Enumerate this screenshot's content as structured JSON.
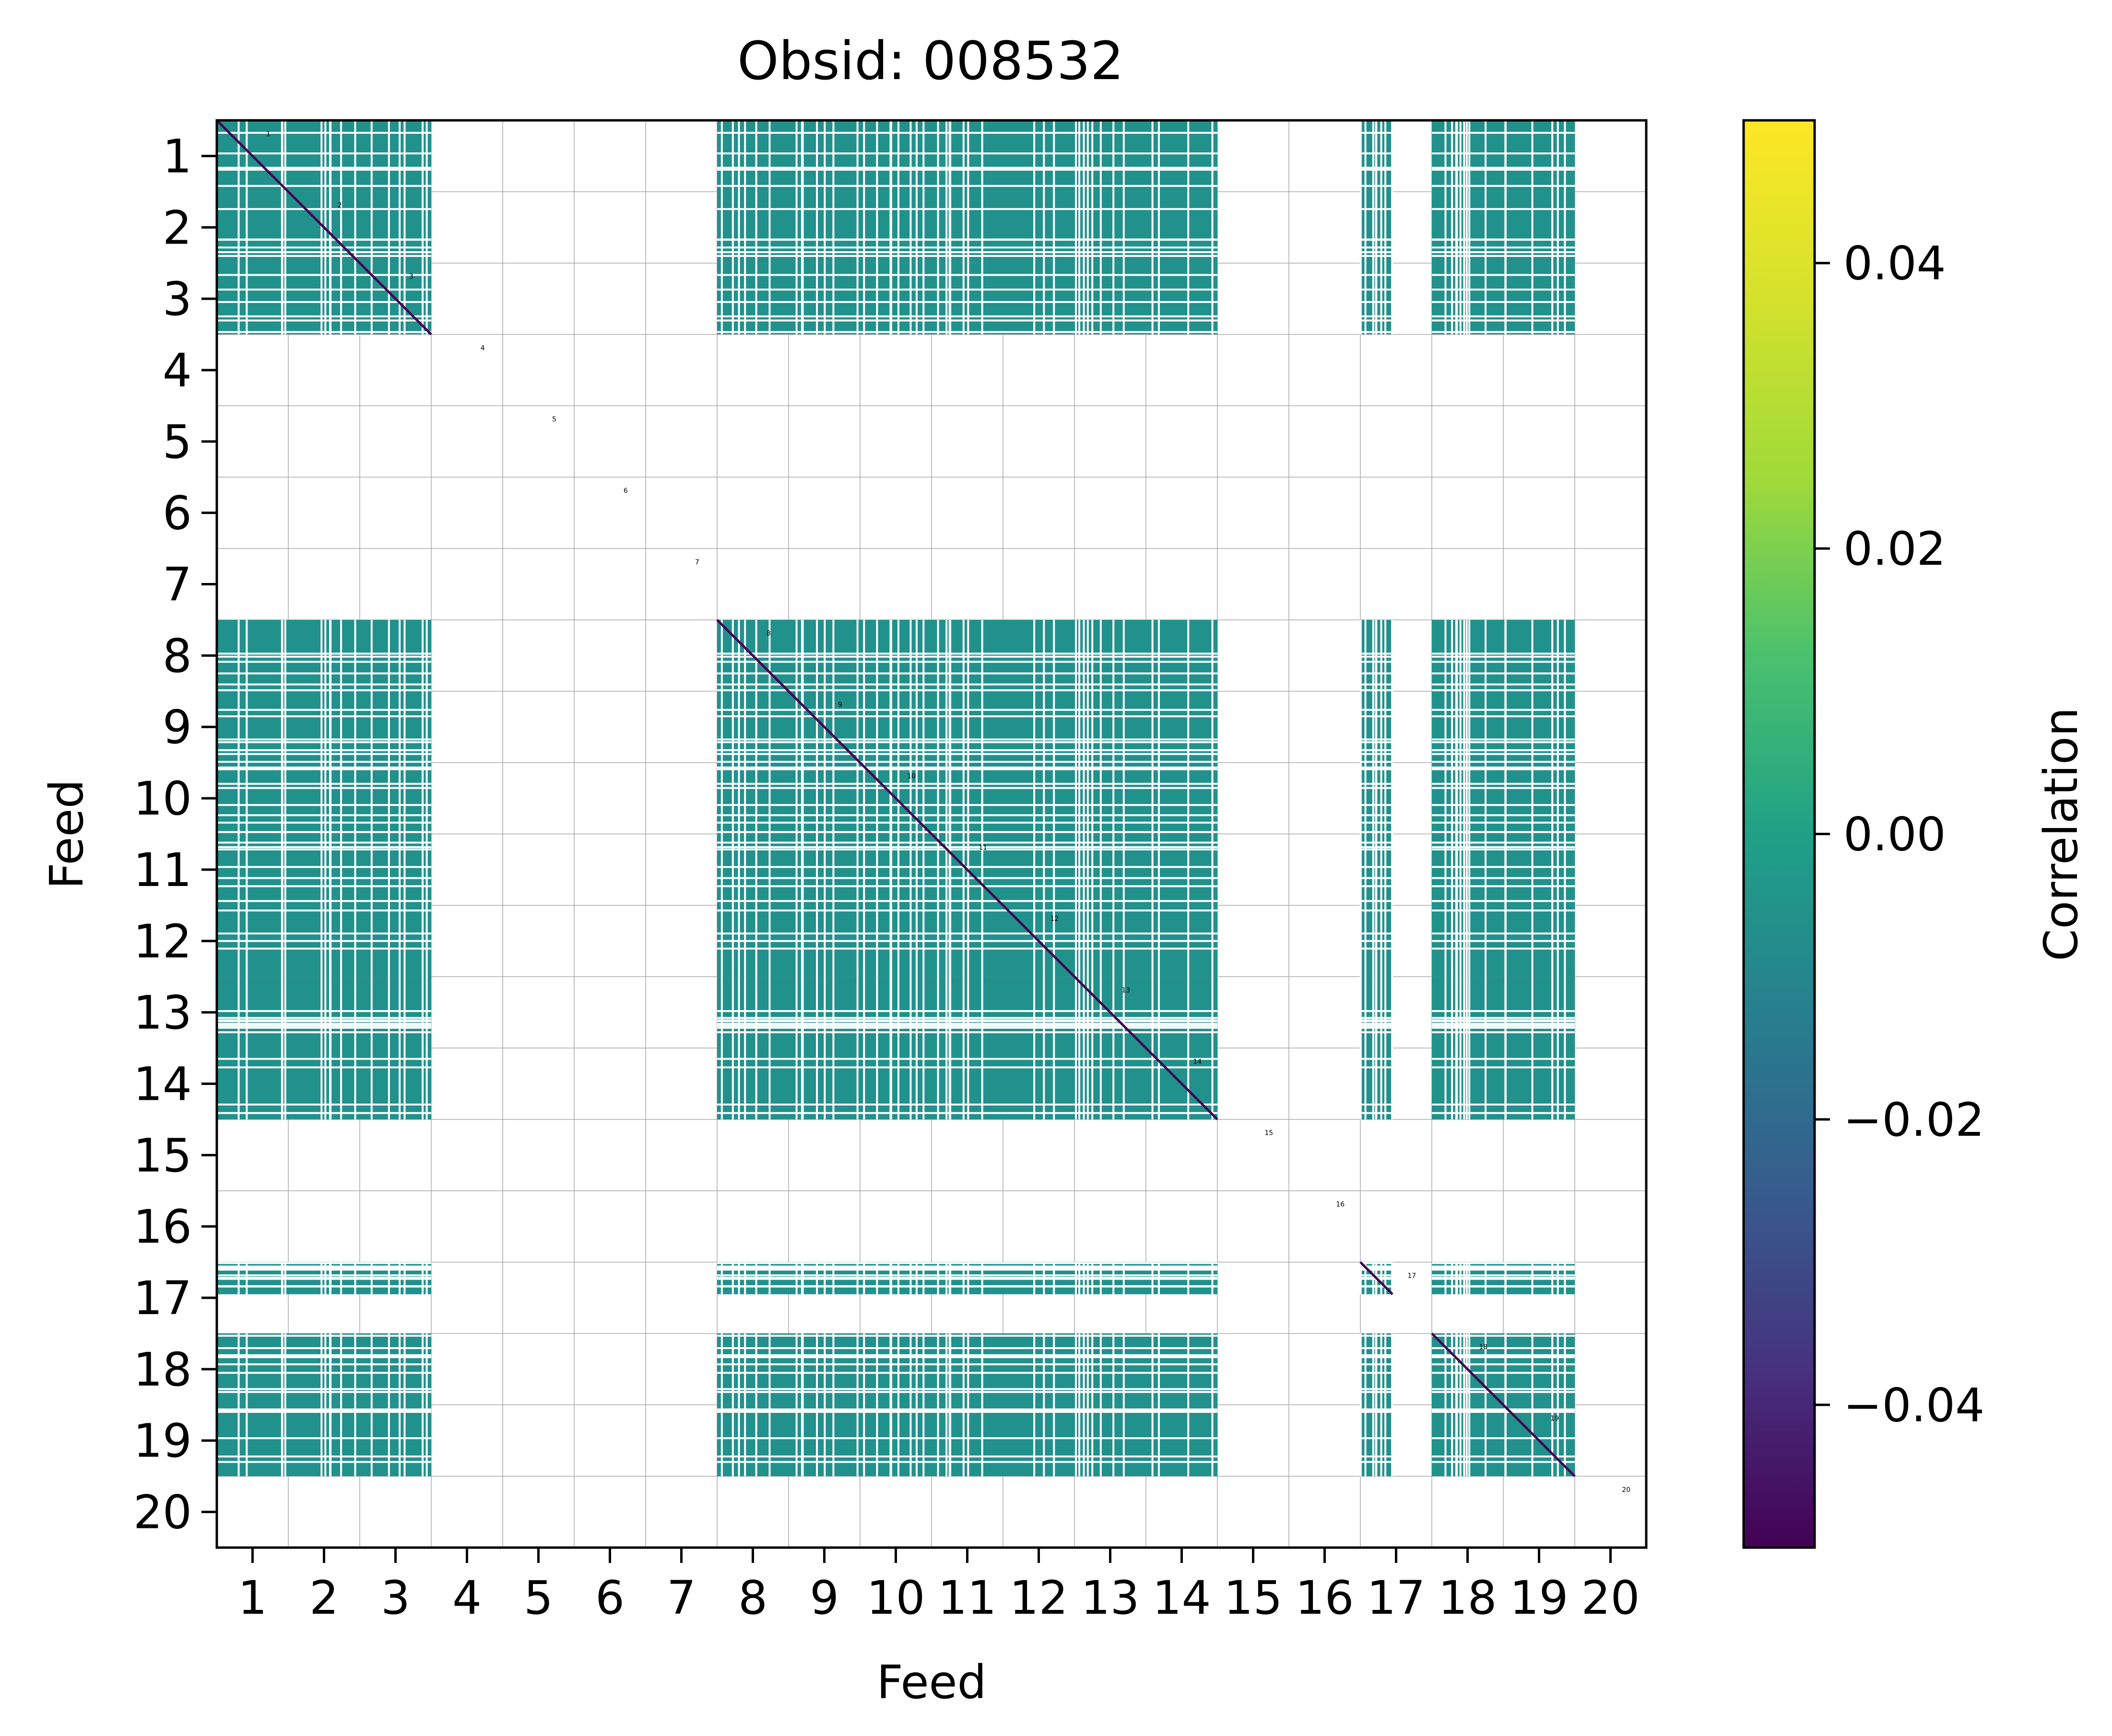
{
  "chart_data": {
    "type": "heatmap",
    "title": "Obsid: 008532",
    "xlabel": "Feed",
    "ylabel": "Feed",
    "feeds": [
      1,
      2,
      3,
      4,
      5,
      6,
      7,
      8,
      9,
      10,
      11,
      12,
      13,
      14,
      15,
      16,
      17,
      18,
      19,
      20
    ],
    "x_tick_labels": [
      "1",
      "2",
      "3",
      "4",
      "5",
      "6",
      "7",
      "8",
      "9",
      "10",
      "11",
      "12",
      "13",
      "14",
      "15",
      "16",
      "17",
      "18",
      "19",
      "20"
    ],
    "y_tick_labels": [
      "1",
      "2",
      "3",
      "4",
      "5",
      "6",
      "7",
      "8",
      "9",
      "10",
      "11",
      "12",
      "13",
      "14",
      "15",
      "16",
      "17",
      "18",
      "19",
      "20"
    ],
    "valid_feeds": [
      1,
      2,
      3,
      8,
      9,
      10,
      11,
      12,
      13,
      14,
      17,
      18,
      19
    ],
    "partial_feed_fraction": {
      "17": 0.45
    },
    "off_diagonal_value": 0.0,
    "diagonal_value": -0.05,
    "missing_value_color": "#ffffff",
    "diagonal_labels": [
      "1",
      "2",
      "3",
      "4",
      "5",
      "6",
      "7",
      "8",
      "9",
      "10",
      "11",
      "12",
      "13",
      "14",
      "15",
      "16",
      "17",
      "18",
      "19",
      "20"
    ],
    "colorbar": {
      "label": "Correlation",
      "range": [
        -0.05,
        0.05
      ],
      "ticks": [
        0.04,
        0.02,
        0.0,
        -0.02,
        -0.04
      ],
      "tick_labels": [
        "0.04",
        "0.02",
        "0.00",
        "−0.02",
        "−0.04"
      ],
      "colormap": "viridis"
    },
    "colors": {
      "cell_fill": "#21918c",
      "cell_line": "#ffffff",
      "diagonal": "#440154",
      "grid": "#aaaaaa"
    }
  }
}
